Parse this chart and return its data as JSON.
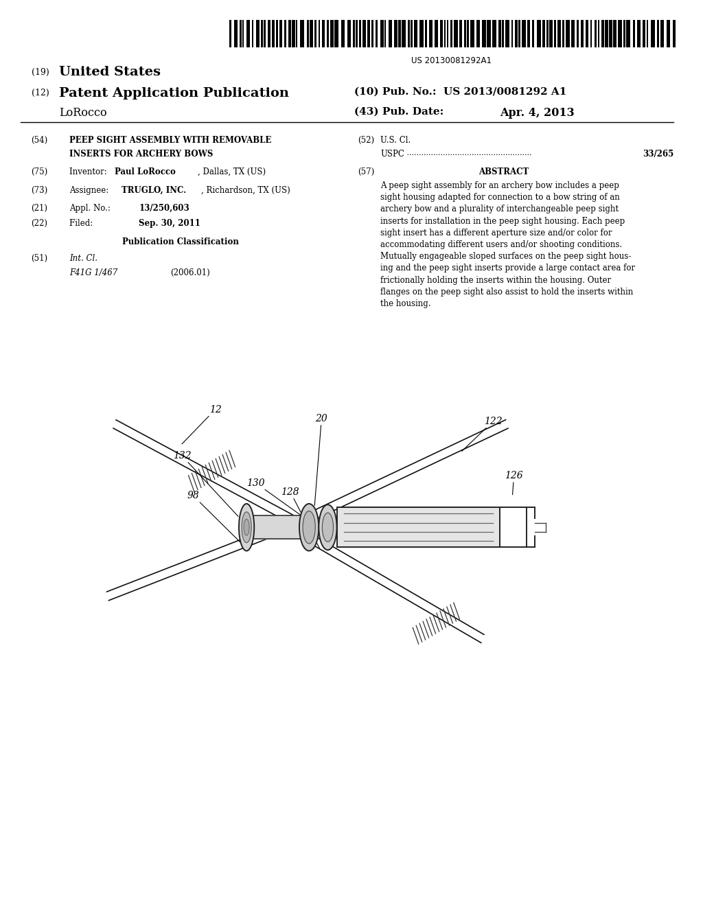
{
  "background_color": "#ffffff",
  "barcode_text": "US 20130081292A1",
  "patent_number": "US 2013/0081292 A1",
  "pub_date": "Apr. 4, 2013",
  "country": "United States",
  "field_54_line1": "PEEP SIGHT ASSEMBLY WITH REMOVABLE",
  "field_54_line2": "INSERTS FOR ARCHERY BOWS",
  "field_52_value": "33/265",
  "field_57_title": "ABSTRACT",
  "abstract_text": "A peep sight assembly for an archery bow includes a peep\nsight housing adapted for connection to a bow string of an\narchery bow and a plurality of interchangeable peep sight\ninserts for installation in the peep sight housing. Each peep\nsight insert has a different aperture size and/or color for\naccommodating different users and/or shooting conditions.\nMutually engageable sloped surfaces on the peep sight hous-\ning and the peep sight inserts provide a large contact area for\nfrictionally holding the inserts within the housing. Outer\nflanges on the peep sight also assist to hold the inserts within\nthe housing.",
  "field_51_class": "F41G 1/467",
  "field_51_date": "(2006.01)"
}
